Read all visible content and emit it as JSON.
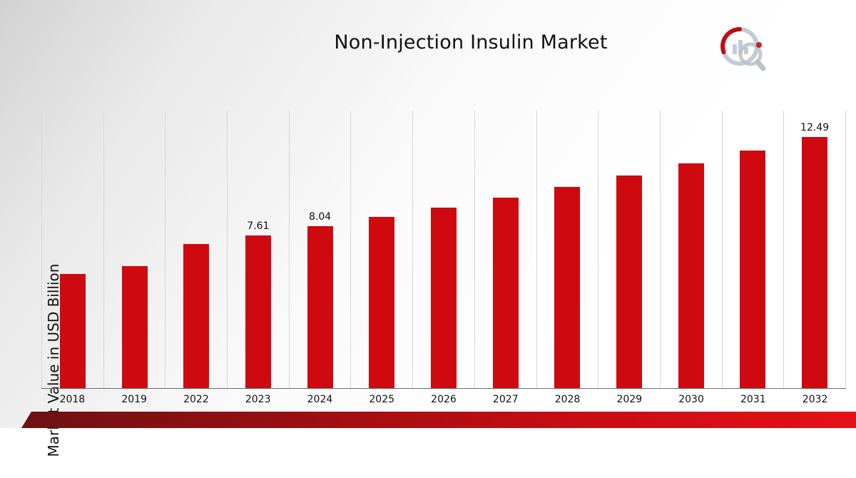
{
  "chart_data": {
    "type": "bar",
    "title": "Non-Injection Insulin Market",
    "ylabel": "Market Value in USD Billion",
    "categories": [
      "2018",
      "2019",
      "2022",
      "2023",
      "2024",
      "2025",
      "2026",
      "2027",
      "2028",
      "2029",
      "2030",
      "2031",
      "2032"
    ],
    "values": [
      5.66,
      6.05,
      7.15,
      7.61,
      8.04,
      8.5,
      8.98,
      9.48,
      10.02,
      10.59,
      11.19,
      11.82,
      12.49
    ],
    "labels": [
      null,
      null,
      null,
      "7.61",
      "8.04",
      null,
      null,
      null,
      null,
      null,
      null,
      null,
      "12.49"
    ],
    "bar_color": "#ce0a10",
    "ylim": [
      0,
      13.8
    ],
    "grid": "vertical",
    "legend_position": "none"
  },
  "logo": {
    "accent_color": "#c00d12",
    "muted_color": "#c3ccd3"
  }
}
